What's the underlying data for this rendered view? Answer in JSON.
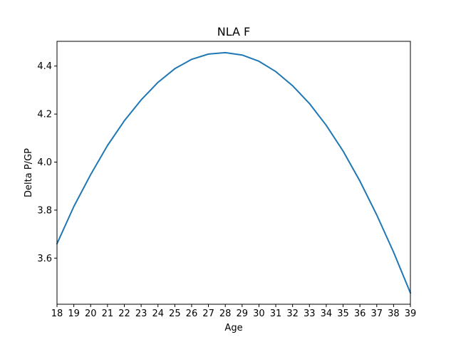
{
  "chart_data": {
    "type": "line",
    "title": "NLA F",
    "xlabel": "Age",
    "ylabel": "Delta P/GP",
    "x": [
      18,
      19,
      20,
      21,
      22,
      23,
      24,
      25,
      26,
      27,
      28,
      29,
      30,
      31,
      32,
      33,
      34,
      35,
      36,
      37,
      38,
      39
    ],
    "series": [
      {
        "color": "#1f77b4",
        "values": [
          3.66,
          3.815,
          3.948,
          4.069,
          4.172,
          4.259,
          4.332,
          4.389,
          4.428,
          4.45,
          4.456,
          4.446,
          4.42,
          4.377,
          4.318,
          4.244,
          4.153,
          4.046,
          3.921,
          3.78,
          3.625,
          3.455
        ]
      }
    ],
    "xlim": [
      18,
      39
    ],
    "ylim": [
      3.408,
      4.503
    ],
    "x_ticks": [
      18,
      19,
      20,
      21,
      22,
      23,
      24,
      25,
      26,
      27,
      28,
      29,
      30,
      31,
      32,
      33,
      34,
      35,
      36,
      37,
      38,
      39
    ],
    "y_ticks": [
      3.6,
      3.8,
      4.0,
      4.2,
      4.4
    ],
    "y_tick_labels": [
      "3.6",
      "3.8",
      "4.0",
      "4.2",
      "4.4"
    ],
    "grid": false,
    "legend": "none"
  }
}
